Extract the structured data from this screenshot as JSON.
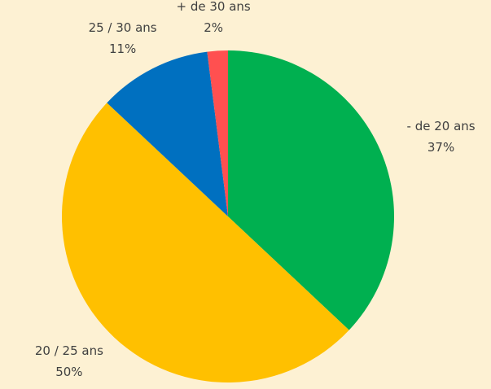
{
  "chart_data": {
    "type": "pie",
    "categories": [
      "- de 20 ans",
      "20 / 25 ans",
      "25 / 30 ans",
      "+ de 30 ans"
    ],
    "values": [
      37,
      50,
      11,
      2
    ],
    "value_labels": [
      "37%",
      "50%",
      "11%",
      "2%"
    ],
    "colors": [
      "#00b050",
      "#ffc000",
      "#0070c0",
      "#ff5050"
    ]
  }
}
